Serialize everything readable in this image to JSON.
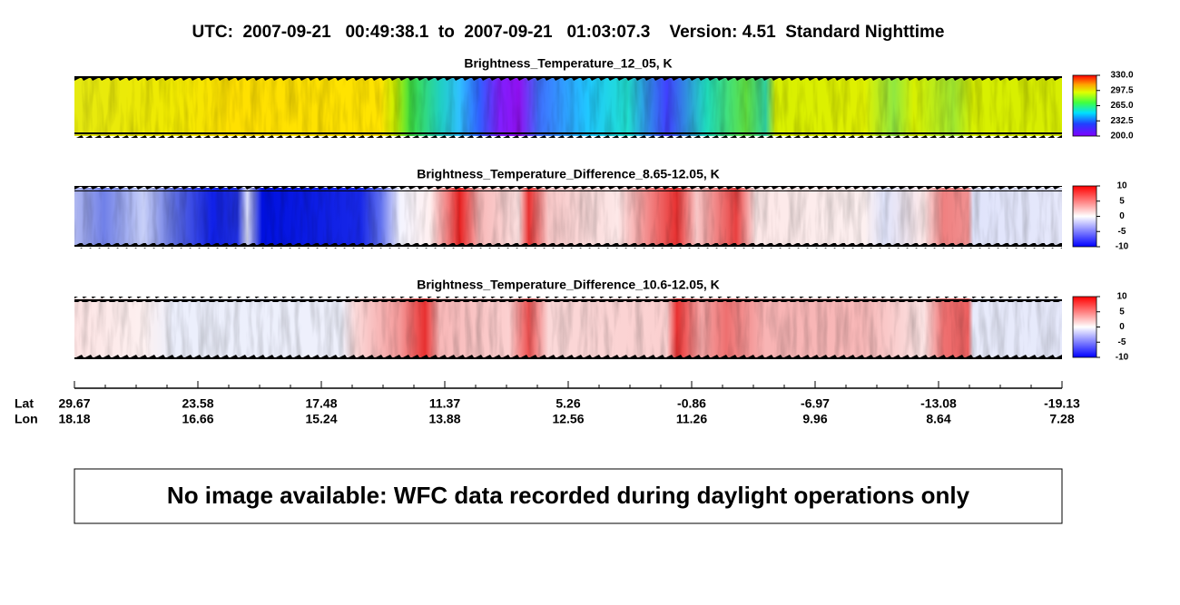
{
  "header": {
    "title": "UTC:  2007-09-21   00:49:38.1  to  2007-09-21   01:03:07.3    Version: 4.51  Standard Nighttime"
  },
  "panels": [
    {
      "title": "Brightness_Temperature_12_05, K",
      "colorbar": {
        "range": [
          200,
          330
        ],
        "ticks": [
          {
            "value": 330,
            "label": "330.0"
          },
          {
            "value": 297.5,
            "label": "297.5"
          },
          {
            "value": 265,
            "label": "265.0"
          },
          {
            "value": 232.5,
            "label": "232.5"
          },
          {
            "value": 200,
            "label": "200.0"
          }
        ]
      }
    },
    {
      "title": "Brightness_Temperature_Difference_8.65-12.05, K",
      "colorbar": {
        "range": [
          -10,
          10
        ],
        "ticks": [
          10,
          5,
          0,
          -5,
          -10
        ]
      }
    },
    {
      "title": "Brightness_Temperature_Difference_10.6-12.05, K",
      "colorbar": {
        "range": [
          -10,
          10
        ],
        "ticks": [
          10,
          5,
          0,
          -5,
          -10
        ]
      }
    }
  ],
  "axis": {
    "lat_label": "Lat",
    "lon_label": "Lon",
    "lat": [
      "29.67",
      "23.58",
      "17.48",
      "11.37",
      "5.26",
      "-0.86",
      "-6.97",
      "-13.08",
      "-19.13"
    ],
    "lon": [
      "18.18",
      "16.66",
      "15.24",
      "13.88",
      "12.56",
      "11.26",
      "9.96",
      "8.64",
      "7.28"
    ]
  },
  "message": "No image available: WFC data recorded during daylight operations only"
}
